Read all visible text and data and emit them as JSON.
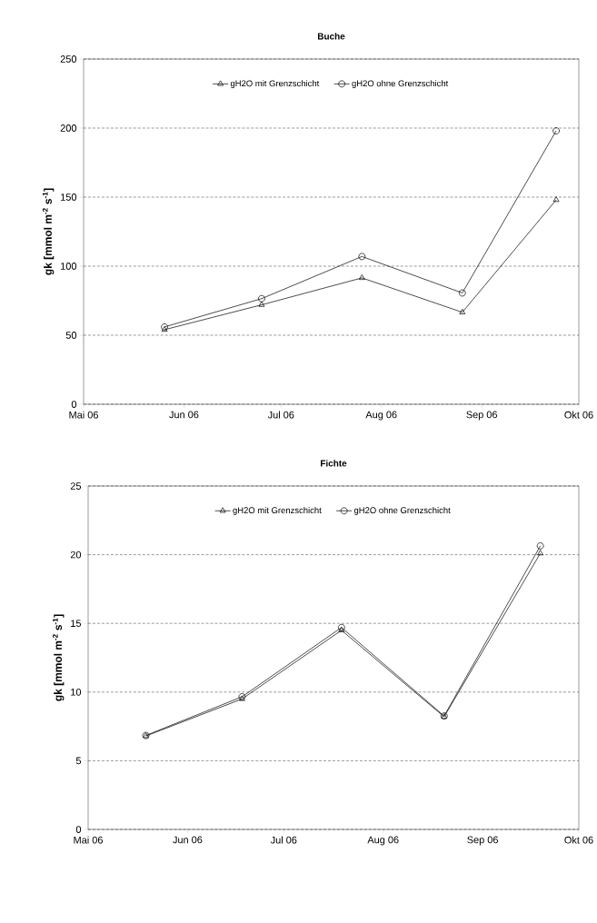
{
  "chart_data": [
    {
      "type": "line",
      "title": "Buche",
      "ylabel": "gk [mmol m$^{-2}$ s$^{-1}$]",
      "x": [
        "2006-05-26",
        "2006-06-25",
        "2006-07-26",
        "2006-08-26",
        "2006-09-24"
      ],
      "series": [
        {
          "name": "gH2O mit Grenzschicht",
          "color": "#000000",
          "marker": "triangle",
          "values": [
            54,
            72,
            91.5,
            66.6,
            148
          ]
        },
        {
          "name": "gH2O ohne Grenzschicht",
          "color": "#000000",
          "marker": "circle",
          "values": [
            56,
            76.5,
            107,
            80.6,
            198
          ]
        }
      ],
      "xlim": [
        "2006-05-01",
        "2006-10-01"
      ],
      "xticks": [
        {
          "value": "2006-05-01",
          "label": "Mai 06"
        },
        {
          "value": "2006-06-01",
          "label": "Jun 06"
        },
        {
          "value": "2006-07-01",
          "label": "Jul 06"
        },
        {
          "value": "2006-08-01",
          "label": "Aug 06"
        },
        {
          "value": "2006-09-01",
          "label": "Sep 06"
        },
        {
          "value": "2006-10-01",
          "label": "Okt 06"
        }
      ],
      "ylim": [
        0,
        250
      ],
      "yticks": [
        0,
        50,
        100,
        150,
        200,
        250
      ],
      "grid": "y",
      "legend": "top",
      "line_style": "solid"
    },
    {
      "type": "line",
      "title": "Fichte",
      "ylabel": "gk [mmol m$^{-2}$ s$^{-1}$]",
      "x": [
        "2006-05-19",
        "2006-06-18",
        "2006-07-19",
        "2006-08-20",
        "2006-09-19"
      ],
      "series": [
        {
          "name": "gH2O mit Grenzschicht",
          "color": "#000000",
          "marker": "triangle",
          "values": [
            6.8,
            9.5,
            14.5,
            8.2,
            20.1
          ]
        },
        {
          "name": "gH2O ohne Grenzschicht",
          "color": "#000000",
          "marker": "circle",
          "values": [
            6.84,
            9.66,
            14.7,
            8.26,
            20.64
          ]
        }
      ],
      "xlim": [
        "2006-05-01",
        "2006-10-01"
      ],
      "xticks": [
        {
          "value": "2006-05-01",
          "label": "Mai 06"
        },
        {
          "value": "2006-06-01",
          "label": "Jun 06"
        },
        {
          "value": "2006-07-01",
          "label": "Jul 06"
        },
        {
          "value": "2006-08-01",
          "label": "Aug 06"
        },
        {
          "value": "2006-09-01",
          "label": "Sep 06"
        },
        {
          "value": "2006-10-01",
          "label": "Okt 06"
        }
      ],
      "ylim": [
        0,
        25
      ],
      "yticks": [
        0,
        5,
        10,
        15,
        20,
        25
      ],
      "grid": "y",
      "legend": "top",
      "line_style": "solid"
    }
  ]
}
